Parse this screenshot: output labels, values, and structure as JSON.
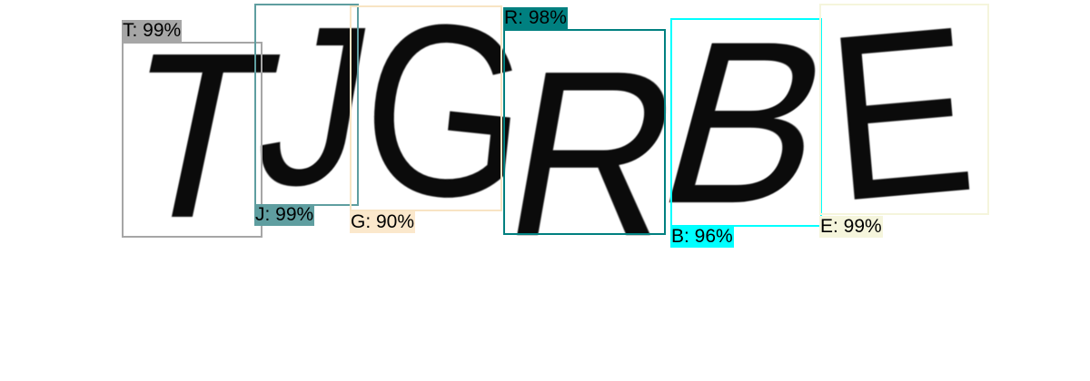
{
  "detections": [
    {
      "glyph": "T",
      "label": "T: 99%",
      "color": "#a6a6a6",
      "label_bg": "#a6a6a6"
    },
    {
      "glyph": "J",
      "label": "J: 99%",
      "color": "#5f9ea0",
      "label_bg": "#5f9ea0"
    },
    {
      "glyph": "G",
      "label": "G: 90%",
      "color": "#f8e4c4",
      "label_bg": "#fbe8cc"
    },
    {
      "glyph": "R",
      "label": "R: 98%",
      "color": "#008080",
      "label_bg": "#008080"
    },
    {
      "glyph": "B",
      "label": "B: 96%",
      "color": "#00ffff",
      "label_bg": "#00ffff"
    },
    {
      "glyph": "E",
      "label": "E: 99%",
      "color": "#f5f5dc",
      "label_bg": "#f5f5dc"
    }
  ]
}
